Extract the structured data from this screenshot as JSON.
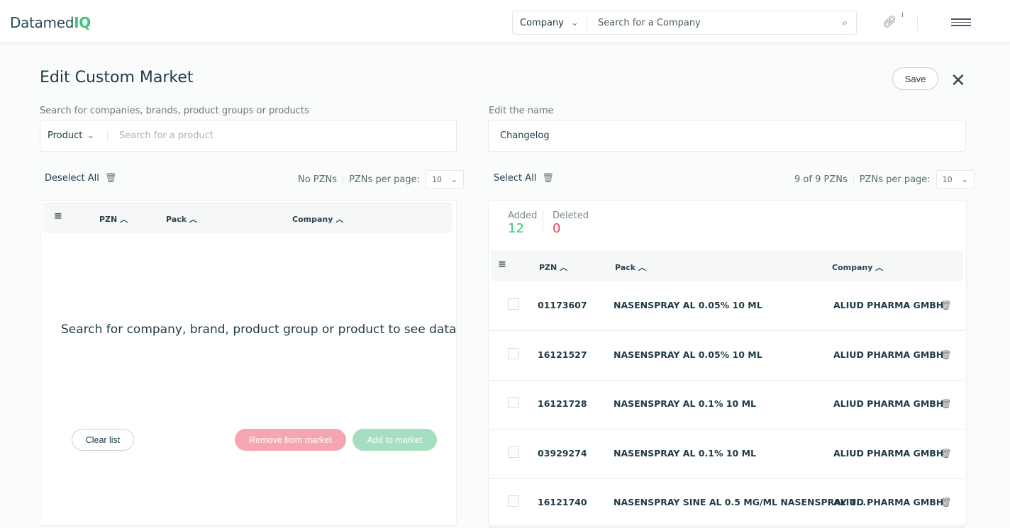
{
  "header": {
    "logo_main": "Datamed",
    "logo_accent": "IQ",
    "search_type": "Company",
    "search_placeholder": "Search for a Company",
    "info_badge": "i"
  },
  "page": {
    "title": "Edit Custom Market",
    "save_label": "Save"
  },
  "left": {
    "label": "Search for companies, brands, product groups or products",
    "search_type": "Product",
    "search_placeholder": "Search for a product",
    "deselect_all": "Deselect All",
    "pzn_count": "No PZNs",
    "per_page_label": "PZNs per page:",
    "per_page": "10",
    "columns": [
      "PZN",
      "Pack",
      "Company"
    ],
    "empty_message": "Search for company, brand, product group or product to see data",
    "clear_list": "Clear list",
    "remove": "Remove from market",
    "add": "Add to market"
  },
  "right": {
    "label": "Edit the name",
    "name_value": "Changelog",
    "select_all": "Select All",
    "pzn_count": "9 of 9 PZNs",
    "per_page_label": "PZNs per page:",
    "per_page": "10",
    "added_label": "Added",
    "added_value": "12",
    "deleted_label": "Deleted",
    "deleted_value": "0",
    "columns": [
      "PZN",
      "Pack",
      "Company"
    ],
    "rows": [
      {
        "pzn": "01173607",
        "pack": "NASENSPRAY AL 0.05% 10 ML",
        "company": "ALIUD PHARMA GMBH"
      },
      {
        "pzn": "16121527",
        "pack": "NASENSPRAY AL 0.05% 10 ML",
        "company": "ALIUD PHARMA GMBH"
      },
      {
        "pzn": "16121728",
        "pack": "NASENSPRAY AL 0.1% 10 ML",
        "company": "ALIUD PHARMA GMBH"
      },
      {
        "pzn": "03929274",
        "pack": "NASENSPRAY AL 0.1% 10 ML",
        "company": "ALIUD PHARMA GMBH"
      },
      {
        "pzn": "16121740",
        "pack": "NASENSPRAY SINE AL 0.5 MG/ML NASENSPRAY 1...",
        "company": "ALIUD PHARMA GMBH"
      }
    ]
  },
  "colors": {
    "accent": "#3cc47c",
    "danger": "#e5405e"
  }
}
